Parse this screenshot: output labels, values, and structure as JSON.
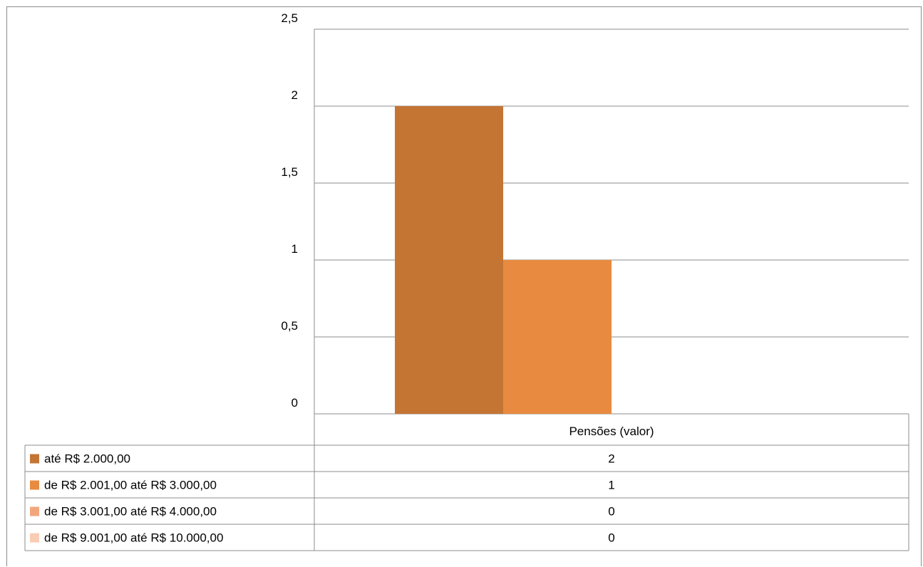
{
  "chart_data": {
    "type": "bar",
    "title": "",
    "categories": [
      "Pensões (valor)"
    ],
    "series": [
      {
        "name": "até R$ 2.000,00",
        "values": [
          2
        ],
        "color": "#C47534"
      },
      {
        "name": "de R$ 2.001,00 até R$ 3.000,00",
        "values": [
          1
        ],
        "color": "#E88B40"
      },
      {
        "name": "de R$ 3.001,00 até R$ 4.000,00",
        "values": [
          0
        ],
        "color": "#F2A67C"
      },
      {
        "name": "de R$ 9.001,00 até R$ 10.000,00",
        "values": [
          0
        ],
        "color": "#F8CDB4"
      }
    ],
    "yticks": [
      "0",
      "0,5",
      "1",
      "1,5",
      "2",
      "2,5"
    ],
    "ylim": [
      0,
      2.5
    ],
    "grid": true,
    "legend": "data-table-below",
    "data_table": [
      [
        "2"
      ],
      [
        "1"
      ],
      [
        "0"
      ],
      [
        "0"
      ]
    ]
  }
}
